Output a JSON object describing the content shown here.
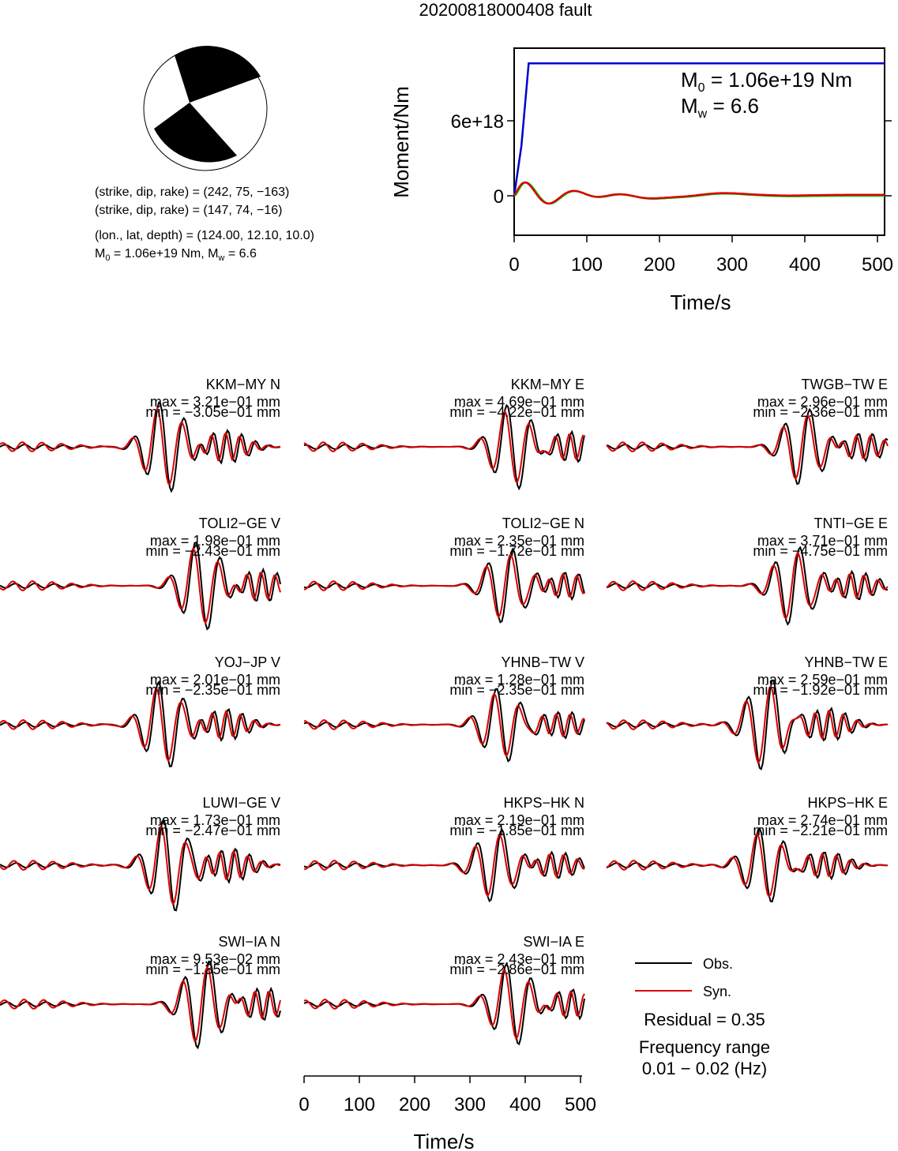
{
  "title": "20200818000408 fault",
  "focal_mechanism": {
    "plane1": "(strike, dip, rake) = (242, 75, −163)",
    "plane2": "(strike, dip, rake) = (147, 74, −16)",
    "location": "(lon., lat, depth) = (124.00, 12.10, 10.0)",
    "moment_text": "= 1.06e+19 Nm, M",
    "mw_text": " = 6.6"
  },
  "stf_panel": {
    "m0_text": "= 1.06e+19 Nm",
    "mw_text": "= 6.6",
    "ylabel": "Moment/Nm",
    "xlabel": "Time/s",
    "y_ticks": [
      "0",
      "6e+18"
    ],
    "x_ticks": [
      "0",
      "100",
      "200",
      "300",
      "400",
      "500"
    ]
  },
  "stations": [
    {
      "name": "KKM−MY N",
      "max": "max = 3.21e−01 mm",
      "min": "min = −3.05e−01 mm"
    },
    {
      "name": "KKM−MY E",
      "max": "max = 4.69e−01 mm",
      "min": "min = −4.22e−01 mm"
    },
    {
      "name": "TWGB−TW E",
      "max": "max = 2.96e−01 mm",
      "min": "min = −2.36e−01 mm"
    },
    {
      "name": "TOLI2−GE V",
      "max": "max = 1.98e−01 mm",
      "min": "min = −2.43e−01 mm"
    },
    {
      "name": "TOLI2−GE N",
      "max": "max = 2.35e−01 mm",
      "min": "min = −1.72e−01 mm"
    },
    {
      "name": "TNTI−GE E",
      "max": "max = 3.71e−01 mm",
      "min": "min = −4.75e−01 mm"
    },
    {
      "name": "YOJ−JP V",
      "max": "max = 2.01e−01 mm",
      "min": "min = −2.35e−01 mm"
    },
    {
      "name": "YHNB−TW V",
      "max": "max = 1.28e−01 mm",
      "min": "min = −2.35e−01 mm"
    },
    {
      "name": "YHNB−TW E",
      "max": "max = 2.59e−01 mm",
      "min": "min = −1.92e−01 mm"
    },
    {
      "name": "LUWI−GE V",
      "max": "max = 1.73e−01 mm",
      "min": "min = −2.47e−01 mm"
    },
    {
      "name": "HKPS−HK N",
      "max": "max = 2.19e−01 mm",
      "min": "min = −1.85e−01 mm"
    },
    {
      "name": "HKPS−HK E",
      "max": "max = 2.74e−01 mm",
      "min": "min = −2.21e−01 mm"
    },
    {
      "name": "SWI−IA N",
      "max": "max = 9.53e−02 mm",
      "min": "min = −1.35e−01 mm"
    },
    {
      "name": "SWI−IA E",
      "max": "max = 2.43e−01 mm",
      "min": "min = −2.86e−01 mm"
    }
  ],
  "legend": {
    "obs": "Obs.",
    "syn": "Syn.",
    "residual": "Residual = 0.35",
    "freq_label": "Frequency range",
    "freq_value": "0.01 − 0.02 (Hz)"
  },
  "waveform_axis": {
    "xlabel": "Time/s",
    "x_ticks": [
      "0",
      "100",
      "200",
      "300",
      "400",
      "500"
    ]
  },
  "colors": {
    "observed": "#000000",
    "synthetic": "#dd0000",
    "moment_rate": "#0000cc",
    "stf_green": "#00cc00",
    "stf_red": "#dd0000",
    "beachball_fill": "#000000"
  },
  "chart_data": [
    {
      "type": "line",
      "xlabel": "Time/s",
      "ylabel": "Moment/Nm",
      "xlim": [
        0,
        510
      ],
      "series": [
        {
          "x": [
            0,
            10,
            20,
            510
          ],
          "y": [
            0,
            4e+18,
            1.06e+19,
            1.06e+19
          ]
        }
      ]
    },
    {
      "type": "line",
      "xlabel": "Time/s",
      "xlim": [
        0,
        510
      ],
      "series": [
        {
          "name": "Obs."
        },
        {
          "name": "Syn."
        }
      ]
    }
  ]
}
